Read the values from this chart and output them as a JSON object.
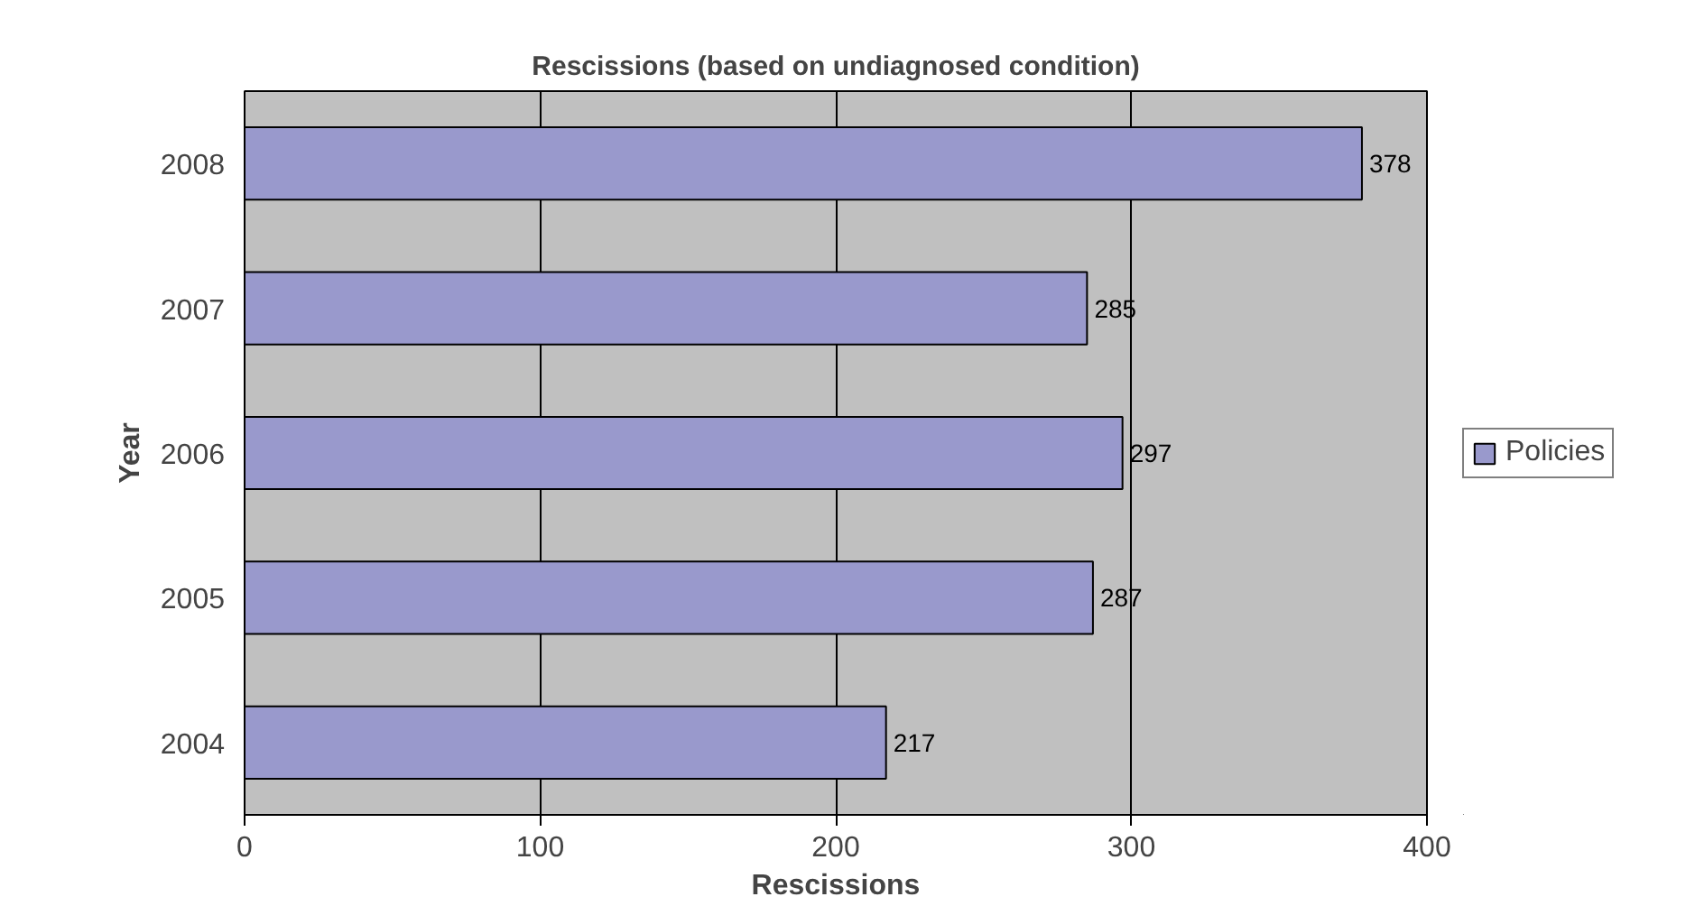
{
  "chart_data": {
    "type": "bar",
    "orientation": "horizontal",
    "title": "Rescissions (based on undiagnosed condition)",
    "xlabel": "Rescissions",
    "ylabel": "Year",
    "categories": [
      "2008",
      "2007",
      "2006",
      "2005",
      "2004"
    ],
    "series": [
      {
        "name": "Policies",
        "color": "#9999cc",
        "values": [
          378,
          285,
          297,
          287,
          217
        ]
      }
    ],
    "xlim": [
      0,
      400
    ],
    "xticks": [
      0,
      100,
      200,
      300,
      400
    ],
    "grid": "x",
    "legend": "right",
    "data_labels": true
  }
}
